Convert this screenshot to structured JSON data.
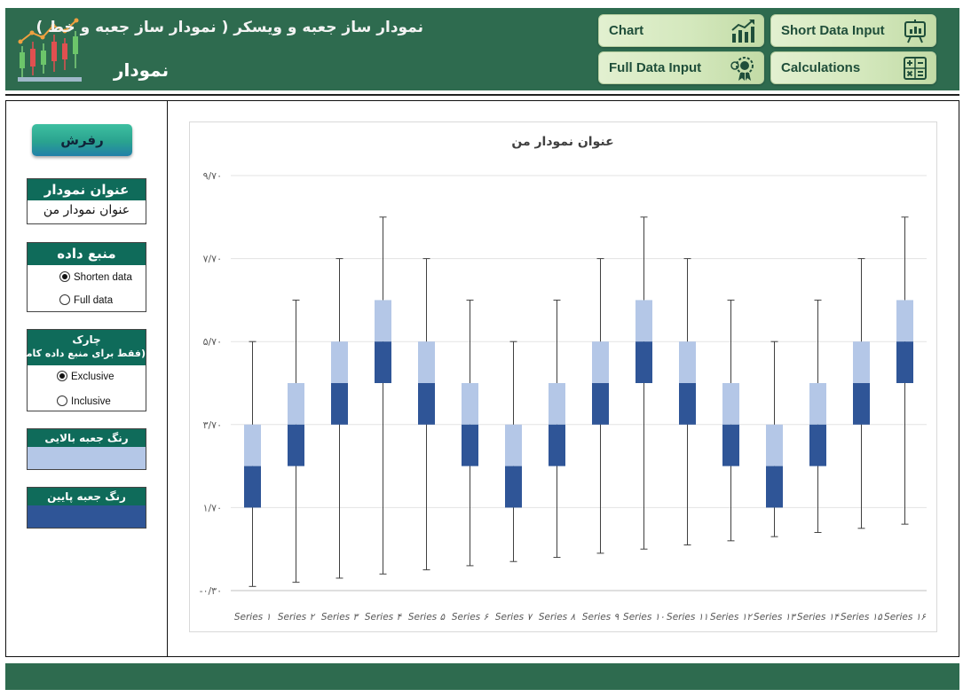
{
  "header": {
    "title": "نمودار ساز جعبه و ویسکر ( نمودار ساز جعبه و خط )",
    "subtitle": "نمودار"
  },
  "nav": {
    "chart": {
      "label": "Chart",
      "icon": "line-chart-icon"
    },
    "short_input": {
      "label": "Short Data Input",
      "icon": "presentation-chart-icon"
    },
    "full_input": {
      "label": "Full Data Input",
      "icon": "gear-badge-icon"
    },
    "calculations": {
      "label": "Calculations",
      "icon": "calculator-icon"
    }
  },
  "sidebar": {
    "refresh_label": "رفرش",
    "title_panel": {
      "header": "عنوان نمودار",
      "value": "عنوان نمودار من"
    },
    "source_panel": {
      "header": "منبع داده",
      "options": [
        "Shorten data",
        "Full data"
      ],
      "selected": "Shorten data"
    },
    "quartile_panel": {
      "header_line1": "چارک",
      "header_line2": "(فقط برای منبع داده کامل)",
      "options": [
        "Exclusive",
        "Inclusive"
      ],
      "selected": "Exclusive"
    },
    "upper_color": {
      "header": "رنگ جعبه بالایی",
      "color": "#b4c7e7"
    },
    "lower_color": {
      "header": "رنگ جعبه پایین",
      "color": "#2f5597"
    }
  },
  "chart_data": {
    "type": "box",
    "title": "عنوان نمودار من",
    "categories": [
      "Series ۱",
      "Series ۲",
      "Series ۳",
      "Series ۴",
      "Series ۵",
      "Series ۶",
      "Series ۷",
      "Series ۸",
      "Series ۹",
      "Series ۱۰",
      "Series ۱۱",
      "Series ۱۲",
      "Series ۱۳",
      "Series ۱۴",
      "Series ۱۵",
      "Series ۱۶"
    ],
    "y_ticks": [
      "-۰/۳۰",
      "۱/۷۰",
      "۳/۷۰",
      "۵/۷۰",
      "۷/۷۰",
      "۹/۷۰"
    ],
    "ylim": [
      -0.3,
      9.7
    ],
    "grid": true,
    "min": [
      -0.2,
      -0.1,
      0.0,
      0.1,
      0.2,
      0.3,
      0.4,
      0.5,
      0.6,
      0.7,
      0.8,
      0.9,
      1.0,
      1.1,
      1.2,
      1.3
    ],
    "q1": [
      1.7,
      2.7,
      3.7,
      4.7,
      3.7,
      2.7,
      1.7,
      2.7,
      3.7,
      4.7,
      3.7,
      2.7,
      1.7,
      2.7,
      3.7,
      4.7
    ],
    "median": [
      2.7,
      3.7,
      4.7,
      5.7,
      4.7,
      3.7,
      2.7,
      3.7,
      4.7,
      5.7,
      4.7,
      3.7,
      2.7,
      3.7,
      4.7,
      5.7
    ],
    "q3": [
      3.7,
      4.7,
      5.7,
      6.7,
      5.7,
      4.7,
      3.7,
      4.7,
      5.7,
      6.7,
      5.7,
      4.7,
      3.7,
      4.7,
      5.7,
      6.7
    ],
    "max": [
      5.7,
      6.7,
      7.7,
      8.7,
      7.7,
      6.7,
      5.7,
      6.7,
      7.7,
      8.7,
      7.7,
      6.7,
      5.7,
      6.7,
      7.7,
      8.7
    ],
    "upper_color": "#b4c7e7",
    "lower_color": "#2f5597"
  }
}
